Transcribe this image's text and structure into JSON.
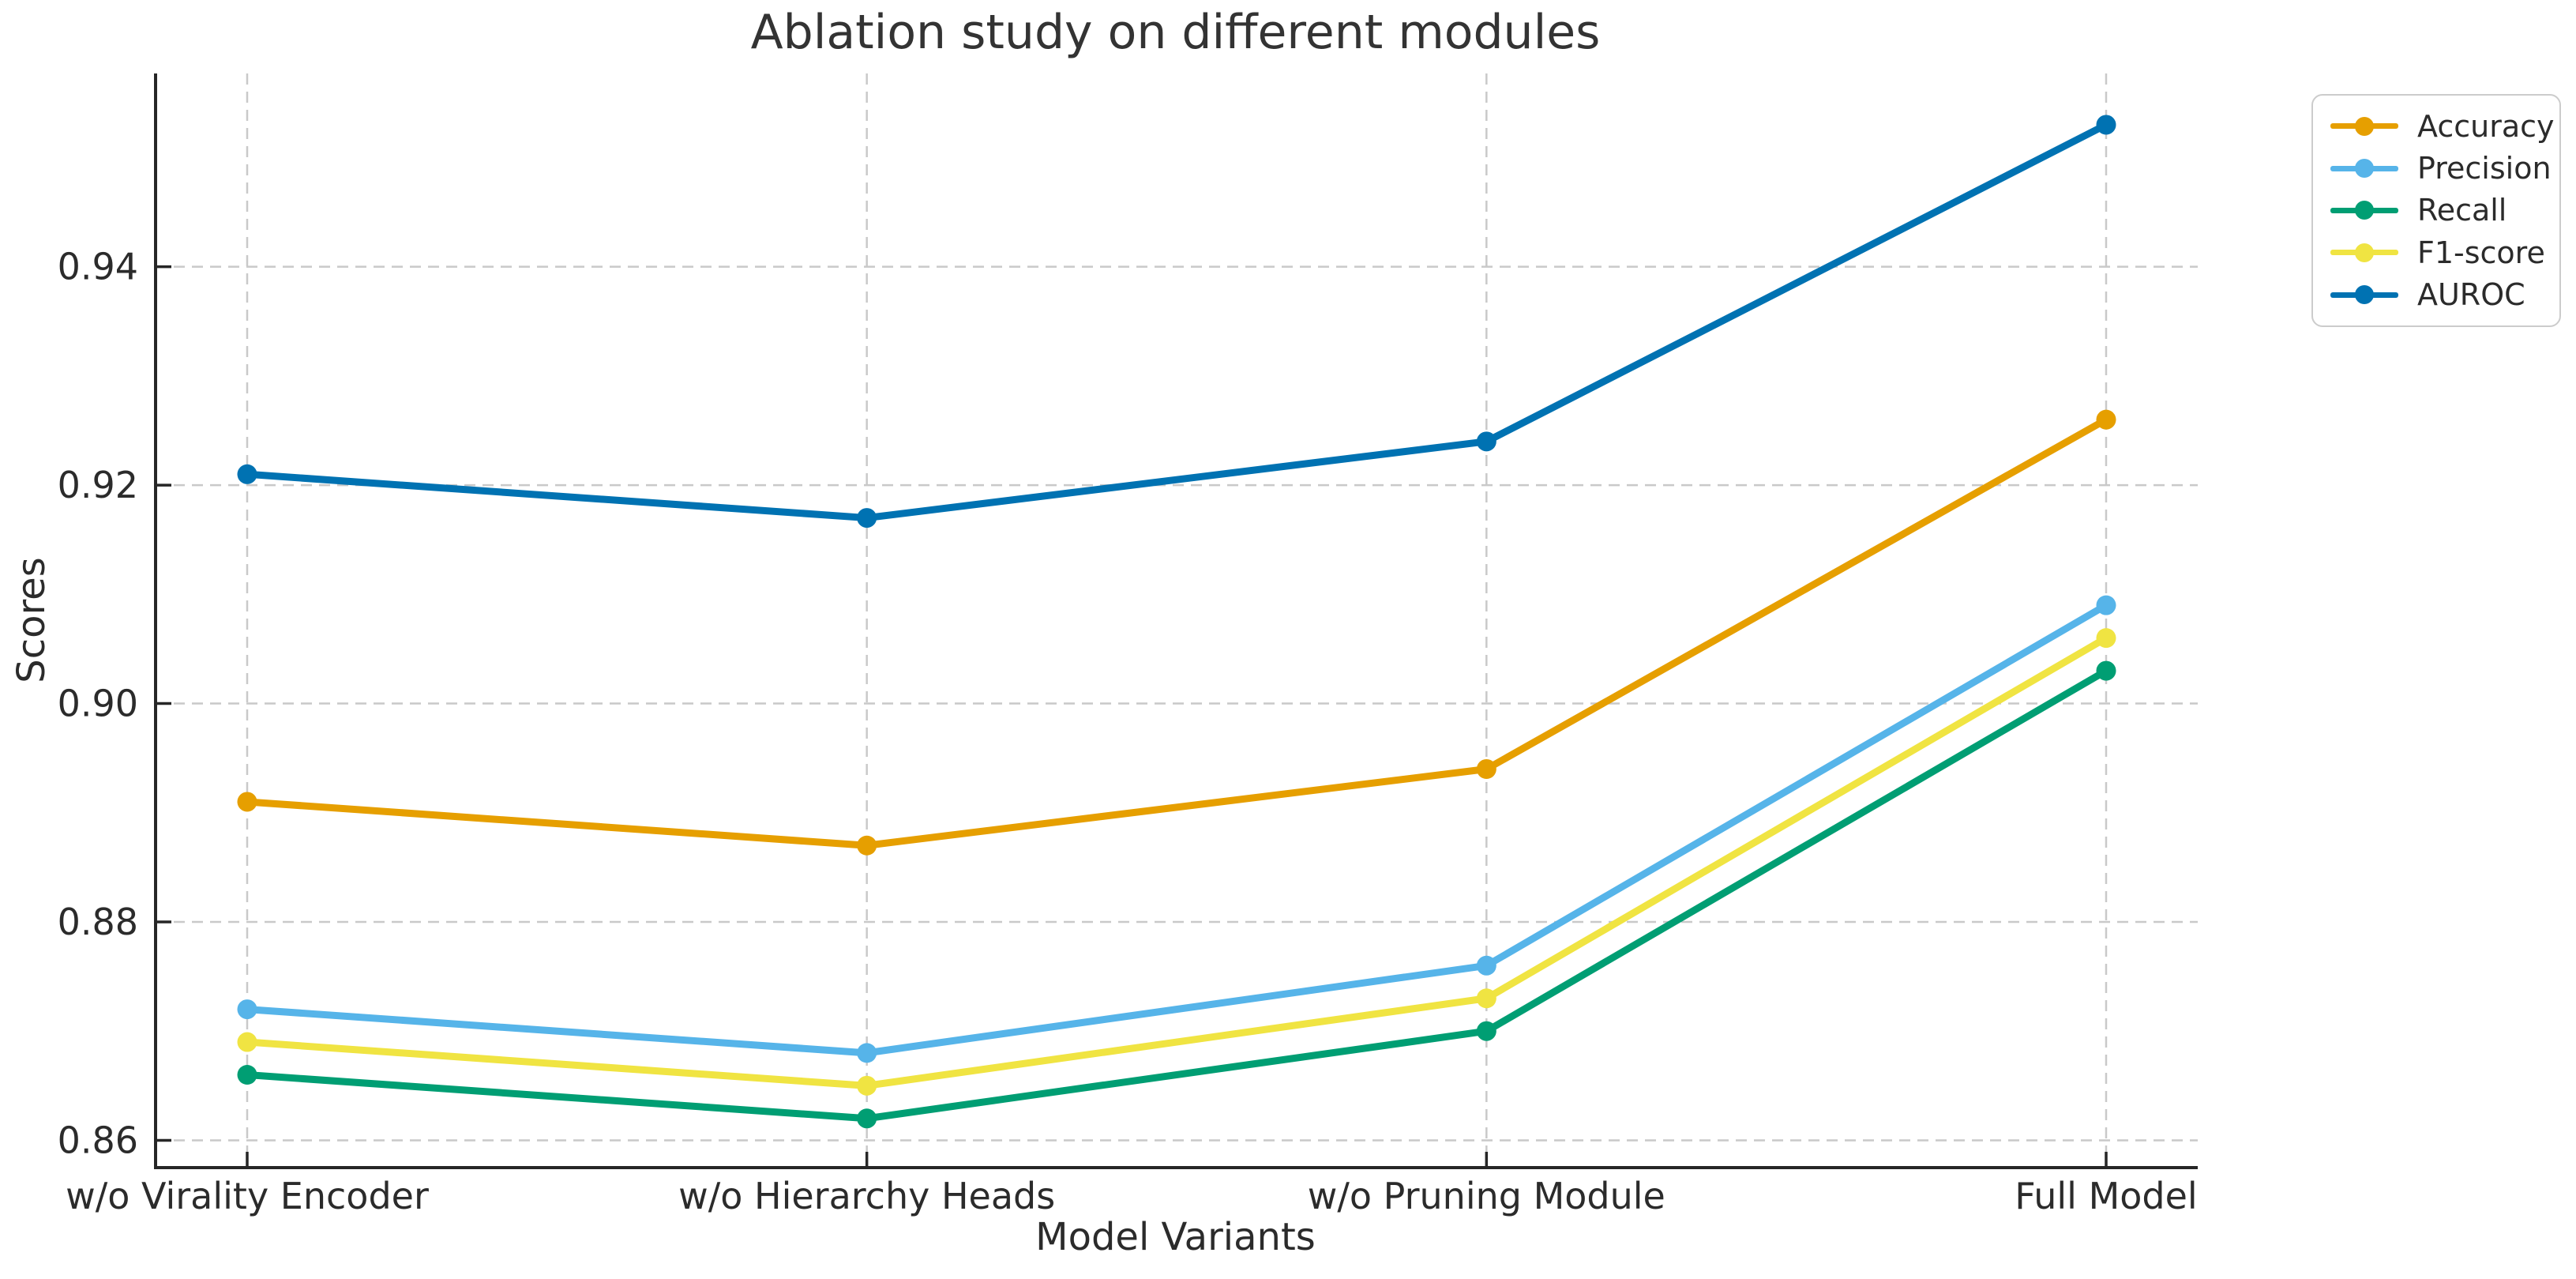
{
  "title": "Ablation study on different modules",
  "chart_data": {
    "type": "line",
    "title": "Ablation study on different modules",
    "xlabel": "Model Variants",
    "ylabel": "Scores",
    "categories": [
      "w/o Virality Encoder",
      "w/o Hierarchy Heads",
      "w/o Pruning Module",
      "Full Model"
    ],
    "series": [
      {
        "name": "Accuracy",
        "color": "#E69F00",
        "values": [
          0.891,
          0.887,
          0.894,
          0.926
        ]
      },
      {
        "name": "Precision",
        "color": "#56B4E9",
        "values": [
          0.872,
          0.868,
          0.876,
          0.909
        ]
      },
      {
        "name": "Recall",
        "color": "#009E73",
        "values": [
          0.866,
          0.862,
          0.87,
          0.903
        ]
      },
      {
        "name": "F1-score",
        "color": "#F0E442",
        "values": [
          0.869,
          0.865,
          0.873,
          0.906
        ]
      },
      {
        "name": "AUROC",
        "color": "#0072B2",
        "values": [
          0.921,
          0.917,
          0.924,
          0.953
        ]
      }
    ],
    "yticks": [
      0.86,
      0.88,
      0.9,
      0.92,
      0.94
    ],
    "ytick_labels": [
      "0.86",
      "0.88",
      "0.90",
      "0.92",
      "0.94"
    ],
    "ylim": [
      0.8575,
      0.9577
    ],
    "grid": true,
    "grid_style": "dashed",
    "legend_position": "outside upper right",
    "marker": "circle"
  },
  "colors": {
    "text": "#2b2b2b",
    "spine": "#262626",
    "grid": "#c9c9c9",
    "background": "#ffffff"
  }
}
